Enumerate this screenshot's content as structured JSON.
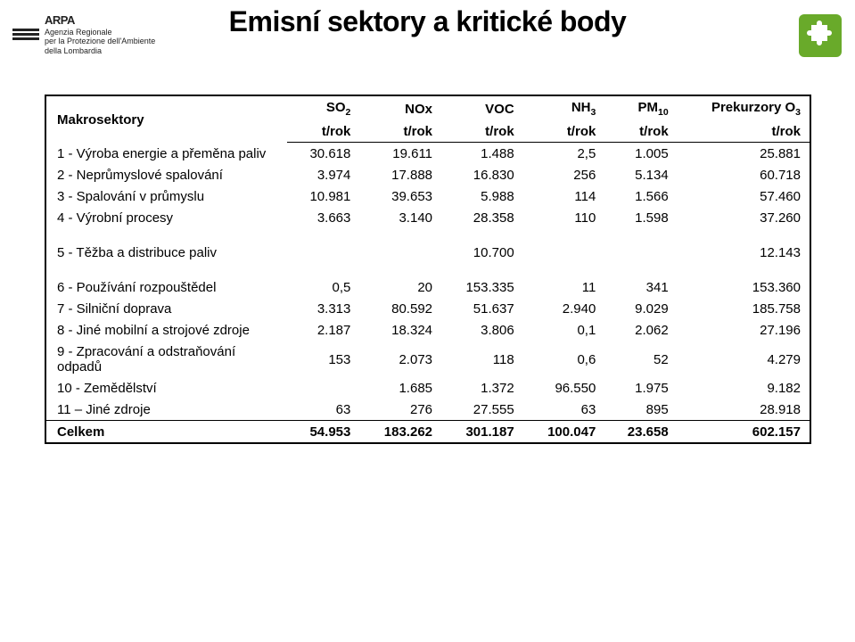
{
  "title": "Emisní sektory a kritické body",
  "logo": {
    "line1": "ARPA",
    "sub1": "Agenzia Regionale",
    "sub2": "per la Protezione dell'Ambiente",
    "sub3": "della Lombardia"
  },
  "table": {
    "header_row1": [
      "Makrosektory",
      "SO₂",
      "NOx",
      "VOC",
      "NH₃",
      "PM₁₀",
      "Prekurzory O₃"
    ],
    "header_row2": [
      "",
      "t/rok",
      "t/rok",
      "t/rok",
      "t/rok",
      "t/rok",
      "t/rok"
    ],
    "rows": [
      {
        "label": "1 - Výroba energie a přeměna paliv",
        "v": [
          "30.618",
          "19.611",
          "1.488",
          "2,5",
          "1.005",
          "25.881"
        ]
      },
      {
        "label": "2 - Neprůmyslové spalování",
        "v": [
          "3.974",
          "17.888",
          "16.830",
          "256",
          "5.134",
          "60.718"
        ]
      },
      {
        "label": "3 - Spalování v průmyslu",
        "v": [
          "10.981",
          "39.653",
          "5.988",
          "114",
          "1.566",
          "57.460"
        ]
      },
      {
        "label": "4 - Výrobní procesy",
        "v": [
          "3.663",
          "3.140",
          "28.358",
          "110",
          "1.598",
          "37.260"
        ]
      },
      {
        "label": "5 - Těžba a distribuce paliv",
        "v": [
          "",
          "",
          "10.700",
          "",
          "",
          "12.143"
        ],
        "gapBefore": true,
        "gapAfter": true
      },
      {
        "label": "6 - Používání rozpouštědel",
        "v": [
          "0,5",
          "20",
          "153.335",
          "11",
          "341",
          "153.360"
        ]
      },
      {
        "label": "7 - Silniční doprava",
        "v": [
          "3.313",
          "80.592",
          "51.637",
          "2.940",
          "9.029",
          "185.758"
        ]
      },
      {
        "label": "8 - Jiné mobilní a strojové zdroje",
        "v": [
          "2.187",
          "18.324",
          "3.806",
          "0,1",
          "2.062",
          "27.196"
        ]
      },
      {
        "label": "9 - Zpracování a odstraňování odpadů",
        "v": [
          "153",
          "2.073",
          "118",
          "0,6",
          "52",
          "4.279"
        ]
      },
      {
        "label": "10 - Zemědělství",
        "v": [
          "",
          "1.685",
          "1.372",
          "96.550",
          "1.975",
          "9.182"
        ]
      },
      {
        "label": "11 – Jiné zdroje",
        "v": [
          "63",
          "276",
          "27.555",
          "63",
          "895",
          "28.918"
        ],
        "sepBelow": true
      }
    ],
    "total": {
      "label": "Celkem",
      "v": [
        "54.953",
        "183.262",
        "301.187",
        "100.047",
        "23.658",
        "602.157"
      ]
    }
  },
  "colors": {
    "text": "#000000",
    "border": "#000000",
    "background": "#ffffff",
    "accent_green": "#69aa2a"
  }
}
